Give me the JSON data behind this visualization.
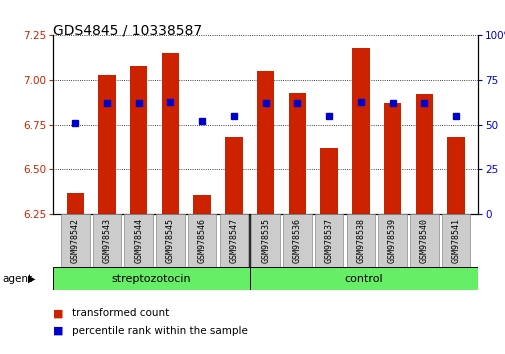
{
  "title": "GDS4845 / 10338587",
  "samples": [
    "GSM978542",
    "GSM978543",
    "GSM978544",
    "GSM978545",
    "GSM978546",
    "GSM978547",
    "GSM978535",
    "GSM978536",
    "GSM978537",
    "GSM978538",
    "GSM978539",
    "GSM978540",
    "GSM978541"
  ],
  "red_values": [
    6.37,
    7.03,
    7.08,
    7.15,
    6.36,
    6.68,
    7.05,
    6.93,
    6.62,
    7.18,
    6.87,
    6.92,
    6.68
  ],
  "blue_values": [
    51,
    62,
    62,
    63,
    52,
    55,
    62,
    62,
    55,
    63,
    62,
    62,
    55
  ],
  "ylim_left": [
    6.25,
    7.25
  ],
  "ylim_right": [
    0,
    100
  ],
  "yticks_left": [
    6.25,
    6.5,
    6.75,
    7.0,
    7.25
  ],
  "yticks_right": [
    0,
    25,
    50,
    75,
    100
  ],
  "group_divider": 6,
  "bar_color": "#CC2200",
  "dot_color": "#0000CC",
  "background_color": "#ffffff",
  "tick_color_left": "#CC2200",
  "tick_color_right": "#0000CC",
  "legend_red": "transformed count",
  "legend_blue": "percentile rank within the sample",
  "strep_color": "#66EE66",
  "ctrl_color": "#66EE66"
}
